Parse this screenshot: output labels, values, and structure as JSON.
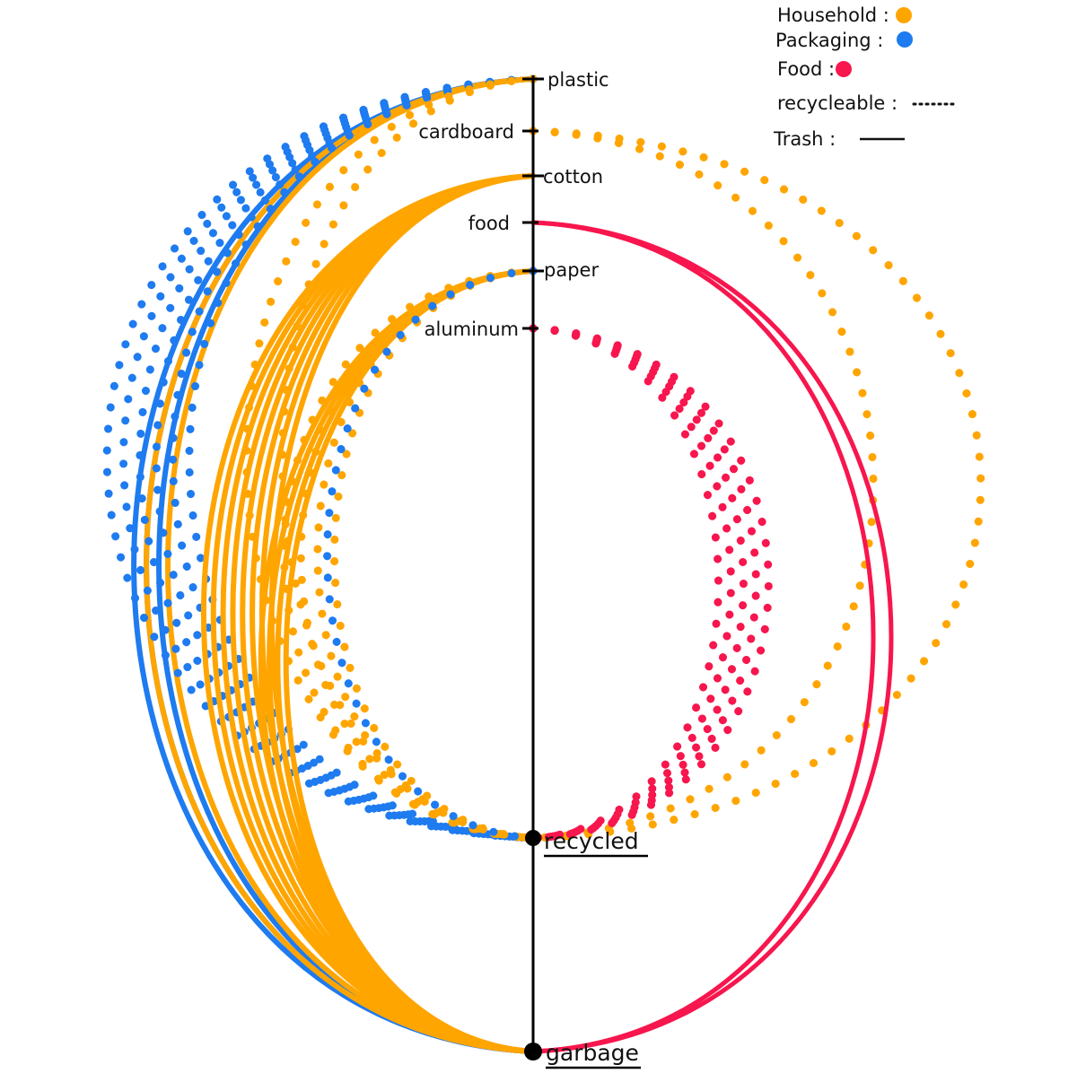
{
  "colors": {
    "household": "#ffa500",
    "packaging": "#1e7bf0",
    "food": "#f7164d",
    "axis": "#000000"
  },
  "legend": {
    "household": "Household :",
    "packaging": "Packaging :",
    "food": "Food :",
    "recyclable": "recycleable :",
    "trash": "Trash :"
  },
  "sources": {
    "plastic": "plastic",
    "cardboard": "cardboard",
    "cotton": "cotton",
    "food": "food",
    "paper": "paper",
    "aluminum": "aluminum"
  },
  "destinations": {
    "recycled": "recycled",
    "garbage": "garbage"
  },
  "flows": [
    {
      "from": "plastic",
      "to": "garbage",
      "category": "packaging",
      "kind": "trash",
      "count": 3
    },
    {
      "from": "plastic",
      "to": "garbage",
      "category": "household",
      "kind": "trash",
      "count": 2
    },
    {
      "from": "plastic",
      "to": "recycled",
      "category": "packaging",
      "kind": "recyclable",
      "count": 6
    },
    {
      "from": "plastic",
      "to": "recycled",
      "category": "household",
      "kind": "recyclable",
      "count": 2
    },
    {
      "from": "cardboard",
      "to": "recycled",
      "category": "household",
      "kind": "recyclable",
      "count": 2
    },
    {
      "from": "cotton",
      "to": "garbage",
      "category": "household",
      "kind": "trash",
      "count": 8
    },
    {
      "from": "food",
      "to": "garbage",
      "category": "food",
      "kind": "trash",
      "count": 2
    },
    {
      "from": "paper",
      "to": "garbage",
      "category": "household",
      "kind": "trash",
      "count": 4
    },
    {
      "from": "paper",
      "to": "recycled",
      "category": "household",
      "kind": "recyclable",
      "count": 4
    },
    {
      "from": "paper",
      "to": "recycled",
      "category": "packaging",
      "kind": "recyclable",
      "count": 1
    },
    {
      "from": "aluminum",
      "to": "recycled",
      "category": "food",
      "kind": "recyclable",
      "count": 5
    }
  ]
}
